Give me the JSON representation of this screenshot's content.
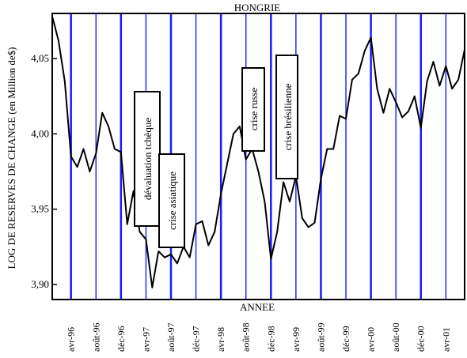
{
  "chart_data": {
    "type": "line",
    "title": "HONGRIE",
    "xlabel": "ANNEE",
    "ylabel": "LOG DE RESERVES DE CHANGE (en Million de$)",
    "ylim": [
      3.89,
      4.08
    ],
    "y_ticks": [
      "3,90",
      "3,95",
      "4,00",
      "4,05"
    ],
    "y_tick_values": [
      3.9,
      3.95,
      4.0,
      4.05
    ],
    "x_tick_labels": [
      "avr-96",
      "août-96",
      "déc-96",
      "avr-97",
      "août-97",
      "déc-97",
      "avr-98",
      "août-98",
      "déc-98",
      "avr-99",
      "août-99",
      "déc-99",
      "avr-00",
      "août-00",
      "déc-00",
      "avr-01"
    ],
    "x_range_months": [
      "janv-96",
      "mai-01"
    ],
    "x_is_months_from_janv_96": true,
    "series": [
      {
        "values": [
          [
            0,
            4.078
          ],
          [
            1,
            4.062
          ],
          [
            2,
            4.035
          ],
          [
            3,
            3.985
          ],
          [
            4,
            3.978
          ],
          [
            5,
            3.99
          ],
          [
            6,
            3.975
          ],
          [
            7,
            3.987
          ],
          [
            8,
            4.014
          ],
          [
            9,
            4.005
          ],
          [
            10,
            3.99
          ],
          [
            11,
            3.988
          ],
          [
            12,
            3.94
          ],
          [
            13,
            3.962
          ],
          [
            14,
            3.935
          ],
          [
            15,
            3.93
          ],
          [
            16,
            3.898
          ],
          [
            17,
            3.922
          ],
          [
            18,
            3.918
          ],
          [
            19,
            3.92
          ],
          [
            20,
            3.914
          ],
          [
            21,
            3.925
          ],
          [
            22,
            3.918
          ],
          [
            23,
            3.94
          ],
          [
            24,
            3.942
          ],
          [
            25,
            3.926
          ],
          [
            26,
            3.935
          ],
          [
            27,
            3.96
          ],
          [
            28,
            3.98
          ],
          [
            29,
            4.0
          ],
          [
            30,
            4.005
          ],
          [
            31,
            3.983
          ],
          [
            32,
            3.99
          ],
          [
            33,
            3.975
          ],
          [
            34,
            3.955
          ],
          [
            35,
            3.917
          ],
          [
            36,
            3.935
          ],
          [
            37,
            3.968
          ],
          [
            38,
            3.955
          ],
          [
            39,
            3.972
          ],
          [
            40,
            3.944
          ],
          [
            41,
            3.938
          ],
          [
            42,
            3.941
          ],
          [
            43,
            3.97
          ],
          [
            44,
            3.99
          ],
          [
            45,
            3.99
          ],
          [
            46,
            4.012
          ],
          [
            47,
            4.01
          ],
          [
            48,
            4.036
          ],
          [
            49,
            4.04
          ],
          [
            50,
            4.055
          ],
          [
            51,
            4.064
          ],
          [
            52,
            4.03
          ],
          [
            53,
            4.014
          ],
          [
            54,
            4.03
          ],
          [
            55,
            4.021
          ],
          [
            56,
            4.011
          ],
          [
            57,
            4.015
          ],
          [
            58,
            4.025
          ],
          [
            59,
            4.004
          ],
          [
            60,
            4.035
          ],
          [
            61,
            4.048
          ],
          [
            62,
            4.032
          ],
          [
            63,
            4.045
          ],
          [
            64,
            4.03
          ],
          [
            65,
            4.036
          ],
          [
            66,
            4.056
          ]
        ]
      }
    ],
    "annotations": [
      "dévaluation tchèque",
      "crise asiatique",
      "crise russe",
      "crise brésilienne"
    ],
    "colors": {
      "line": "#000000",
      "gridlines": "#1a1aff",
      "frame": "#000000"
    },
    "grid": "vertical"
  }
}
